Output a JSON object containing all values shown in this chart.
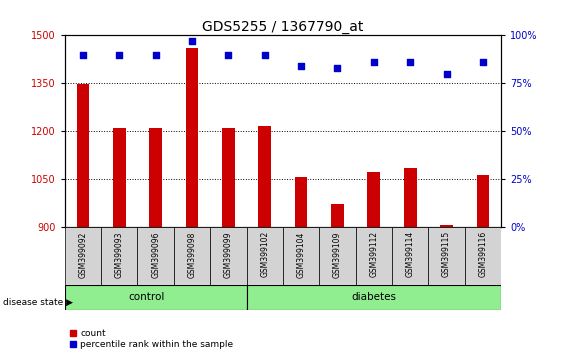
{
  "title": "GDS5255 / 1367790_at",
  "samples": [
    "GSM399092",
    "GSM399093",
    "GSM399096",
    "GSM399098",
    "GSM399099",
    "GSM399102",
    "GSM399104",
    "GSM399109",
    "GSM399112",
    "GSM399114",
    "GSM399115",
    "GSM399116"
  ],
  "counts": [
    1348,
    1208,
    1210,
    1460,
    1208,
    1217,
    1055,
    970,
    1070,
    1085,
    905,
    1063
  ],
  "percentiles": [
    90,
    90,
    90,
    97,
    90,
    90,
    84,
    83,
    86,
    86,
    80,
    86
  ],
  "groups": [
    "control",
    "control",
    "control",
    "control",
    "control",
    "diabetes",
    "diabetes",
    "diabetes",
    "diabetes",
    "diabetes",
    "diabetes",
    "diabetes"
  ],
  "ylim_left": [
    900,
    1500
  ],
  "ylim_right": [
    0,
    100
  ],
  "yticks_left": [
    900,
    1050,
    1200,
    1350,
    1500
  ],
  "yticks_right": [
    0,
    25,
    50,
    75,
    100
  ],
  "bar_color": "#cc0000",
  "dot_color": "#0000cc",
  "control_color": "#90ee90",
  "diabetes_color": "#90ee90",
  "bg_color": "#d3d3d3",
  "plot_bg": "#ffffff",
  "title_fontsize": 10,
  "tick_fontsize": 7,
  "bar_width": 0.35
}
